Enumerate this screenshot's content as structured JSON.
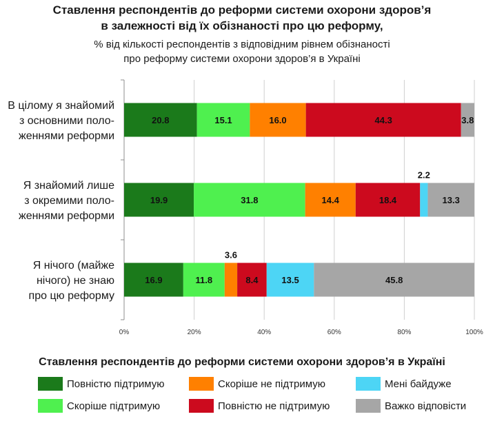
{
  "title_line1": "Ставлення респондентів до реформи системи охорони здоров’я",
  "title_line2": "в залежності від їх обізнаності про цю реформу,",
  "subtitle_line1": "% від кількості респондентів з відповідним рівнем обізнаності",
  "subtitle_line2": "про реформу системи охорони здоров’я в Україні",
  "legend_title": "Ставлення респондентів до реформи системи охорони здоров’я в Україні",
  "colors": {
    "full_support": "#1b7a1b",
    "rather_support": "#4ff04f",
    "rather_not_support": "#ff8000",
    "full_not_support": "#cc0a1e",
    "indifferent": "#4dd5f5",
    "hard_to_say": "#a6a6a6"
  },
  "chart_data": {
    "type": "bar",
    "orientation": "horizontal",
    "stacked": true,
    "categories": [
      [
        "В цілому я знайомий",
        "з основними поло-",
        "женнями реформи"
      ],
      [
        "Я знайомий лише",
        "з окремими поло-",
        "женнями реформи"
      ],
      [
        "Я нічого (майже",
        "нічого) не знаю",
        "про цю реформу"
      ]
    ],
    "series": [
      {
        "name": "Повністю підтримую",
        "key": "full_support",
        "values": [
          20.8,
          19.9,
          16.9
        ],
        "labels": [
          "20.8",
          "19.9",
          "16.9"
        ]
      },
      {
        "name": "Скоріше підтримую",
        "key": "rather_support",
        "values": [
          15.1,
          31.8,
          11.8
        ],
        "labels": [
          "15.1",
          "31.8",
          "11.8"
        ]
      },
      {
        "name": "Скоріше не підтримую",
        "key": "rather_not_support",
        "values": [
          16.0,
          14.4,
          3.6
        ],
        "labels": [
          "16.0",
          "14.4",
          "3.6"
        ]
      },
      {
        "name": "Повністю не підтримую",
        "key": "full_not_support",
        "values": [
          44.3,
          18.4,
          8.4
        ],
        "labels": [
          "44.3",
          "18.4",
          "8.4"
        ]
      },
      {
        "name": "Мені байдуже",
        "key": "indifferent",
        "values": [
          0,
          2.2,
          13.5
        ],
        "labels": [
          "",
          "2.2",
          "13.5"
        ]
      },
      {
        "name": "Важко відповісти",
        "key": "hard_to_say",
        "values": [
          3.8,
          13.3,
          45.8
        ],
        "labels": [
          "3.8",
          "13.3",
          "45.8"
        ]
      }
    ],
    "x_ticks": [
      "0%",
      "20%",
      "40%",
      "60%",
      "80%",
      "100%"
    ],
    "xlim": [
      0,
      100
    ],
    "grid": true,
    "legend_position": "bottom"
  },
  "legend_layout": [
    "full_support",
    "rather_not_support",
    "indifferent",
    "rather_support",
    "full_not_support",
    "hard_to_say"
  ]
}
